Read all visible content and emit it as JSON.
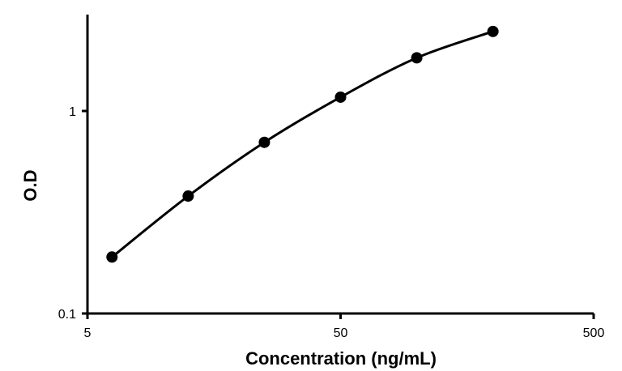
{
  "chart_data": {
    "type": "scatter",
    "title": "",
    "xlabel": "Concentration (ng/mL)",
    "ylabel": "O.D",
    "x_scale": "log",
    "y_scale": "log",
    "xlim": [
      5,
      500
    ],
    "ylim": [
      0.1,
      2.7
    ],
    "x_ticks": [
      {
        "value": 5,
        "label": "5"
      },
      {
        "value": 50,
        "label": "50"
      },
      {
        "value": 500,
        "label": "500"
      }
    ],
    "y_ticks": [
      {
        "value": 0.1,
        "label": "0.1"
      },
      {
        "value": 1,
        "label": "1"
      }
    ],
    "grid": false,
    "legend": "none",
    "curve": "smooth line through points",
    "color": "#000000",
    "series": [
      {
        "x": [
          6.25,
          12.5,
          25,
          50,
          100,
          200
        ],
        "y": [
          0.19,
          0.38,
          0.7,
          1.17,
          1.83,
          2.47
        ]
      }
    ]
  }
}
